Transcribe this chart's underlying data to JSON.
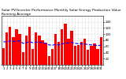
{
  "title": "Solar PV/Inverter Performance Monthly Solar Energy Production Value Running Average",
  "bars": [
    55,
    105,
    125,
    90,
    115,
    100,
    42,
    95,
    125,
    52,
    105,
    95,
    80,
    72,
    28,
    52,
    100,
    75,
    115,
    135,
    85,
    110,
    62,
    65,
    75,
    85,
    48,
    62,
    70,
    52,
    90
  ],
  "running_avg": [
    75,
    75,
    78,
    76,
    78,
    78,
    70,
    72,
    76,
    72,
    74,
    74,
    72,
    70,
    65,
    64,
    66,
    65,
    68,
    71,
    71,
    73,
    70,
    69,
    68,
    68,
    66,
    65,
    64,
    63,
    64
  ],
  "bar_color": "#ff0000",
  "avg_color": "#0000ff",
  "bg_color": "#ffffff",
  "grid_color": "#bbbbbb",
  "ylim": [
    0,
    160
  ],
  "ytick_values": [
    20,
    40,
    60,
    80,
    100,
    120,
    140
  ],
  "ytick_labels": [
    "20",
    "40",
    "60",
    "80",
    "100",
    "120",
    "140"
  ],
  "title_fontsize": 3.2,
  "tick_fontsize": 2.8,
  "avg_linewidth": 0.8,
  "avg_linestyle": "--",
  "bar_width": 0.82
}
